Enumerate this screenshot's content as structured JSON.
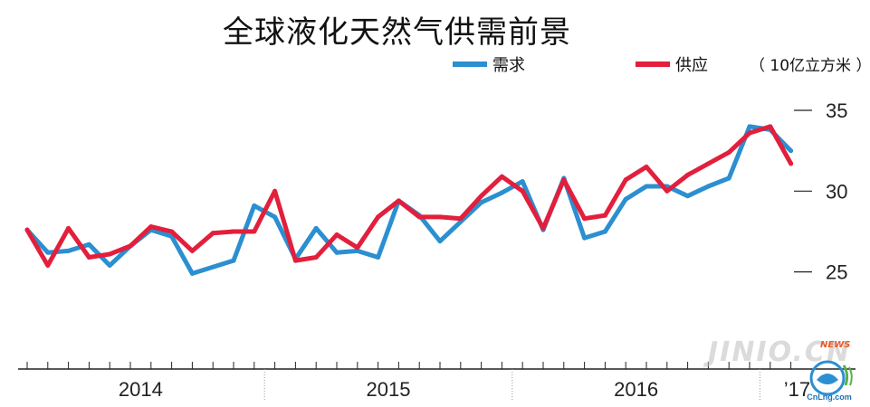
{
  "colors": {
    "demand": "#2b8fd0",
    "supply": "#e21f3c",
    "axis": "#222222"
  },
  "chart_data": {
    "type": "line",
    "title": "全球液化天然气供需前景",
    "unit_label": "（ 10亿立方米 ）",
    "y_ticks": [
      "35",
      "30",
      "25"
    ],
    "y_tick_values": [
      35,
      30,
      25
    ],
    "ylim": [
      19.1,
      36.4
    ],
    "x_count": 38,
    "x_year_labels": [
      {
        "label": "2014",
        "at": 5.5
      },
      {
        "label": "2015",
        "at": 17.5
      },
      {
        "label": "2016",
        "at": 29.5
      },
      {
        "label": "’17",
        "at": 37.3
      }
    ],
    "legend": [
      "需求",
      "供应"
    ],
    "series": [
      {
        "name": "需求",
        "color_key": "demand",
        "values": [
          27.6,
          26.2,
          26.3,
          26.7,
          25.4,
          26.6,
          27.6,
          27.2,
          24.9,
          25.3,
          25.7,
          29.1,
          28.4,
          25.8,
          27.7,
          26.2,
          26.3,
          25.9,
          29.4,
          28.5,
          26.9,
          28.1,
          29.3,
          29.9,
          30.6,
          27.6,
          30.8,
          27.1,
          27.5,
          29.5,
          30.3,
          30.3,
          29.7,
          30.3,
          30.8,
          34.0,
          33.8,
          32.5
        ]
      },
      {
        "name": "供应",
        "color_key": "supply",
        "values": [
          27.6,
          25.4,
          27.7,
          25.9,
          26.1,
          26.6,
          27.8,
          27.5,
          26.3,
          27.4,
          27.5,
          27.5,
          30.0,
          25.7,
          25.9,
          27.3,
          26.5,
          28.4,
          29.4,
          28.4,
          28.4,
          28.3,
          29.7,
          30.9,
          30.0,
          27.7,
          30.7,
          28.3,
          28.5,
          30.7,
          31.5,
          30.0,
          31.0,
          31.7,
          32.4,
          33.6,
          34.0,
          31.7
        ]
      }
    ]
  },
  "watermark": {
    "text": "JINIO.CN",
    "badge": "NEWS",
    "logo_text": "CnLng.com"
  }
}
